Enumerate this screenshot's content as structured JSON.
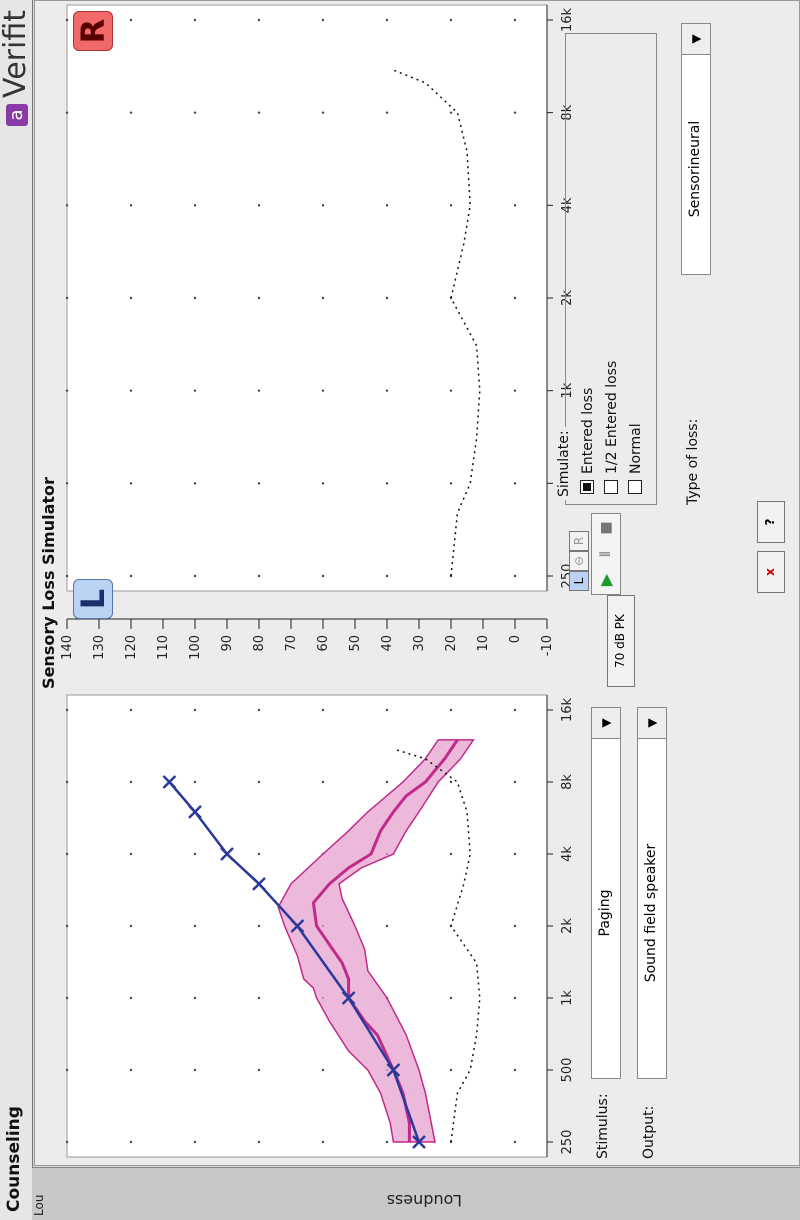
{
  "app": {
    "title": "Counseling",
    "brand": "Verifit",
    "brand_logo": "a"
  },
  "sidebar": {
    "vertical_label_short": "Lou",
    "vertical_label": "Loudness"
  },
  "simulator": {
    "title": "Sensory Loss Simulator"
  },
  "graph": {
    "left_badge": "L",
    "right_badge": "R",
    "x_ticks": [
      "250",
      "500",
      "1k",
      "2k",
      "4k",
      "8k",
      "16k"
    ],
    "y_ticks": [
      "140",
      "130",
      "120",
      "110",
      "100",
      "90",
      "80",
      "70",
      "60",
      "50",
      "40",
      "30",
      "20",
      "10",
      "0",
      "-10"
    ]
  },
  "chart_data": {
    "type": "line",
    "xlabel": "",
    "ylabel": "",
    "x_scale": "log",
    "xlim": [
      250,
      16000
    ],
    "ylim": [
      -10,
      140
    ],
    "categories": [
      "250",
      "500",
      "1k",
      "2k",
      "4k",
      "8k",
      "16k"
    ],
    "series": [
      {
        "name": "",
        "role": "hearing_loss_line",
        "color": "#2b3a9a",
        "x": [
          250,
          500,
          1000,
          2000,
          3000,
          4000,
          6000,
          8000
        ],
        "y": [
          30,
          38,
          52,
          68,
          80,
          90,
          100,
          108
        ]
      },
      {
        "name": "",
        "role": "speech_band_median",
        "color": "#c02a8a",
        "x": [
          250,
          300,
          400,
          500,
          700,
          800,
          1000,
          1200,
          1400,
          1600,
          2000,
          2500,
          3000,
          3500,
          4000,
          5000,
          6000,
          7000,
          8000,
          10000,
          12000
        ],
        "y": [
          33,
          33,
          35,
          38,
          43,
          47,
          52,
          52,
          54,
          57,
          62,
          63,
          58,
          52,
          45,
          42,
          38,
          34,
          28,
          22,
          18
        ]
      },
      {
        "name": "",
        "role": "speech_band_upper",
        "color": "#c02a8a",
        "x": [
          250,
          300,
          400,
          500,
          600,
          800,
          1000,
          1100,
          1200,
          1500,
          2000,
          2400,
          3000,
          4000,
          5000,
          6000,
          8000,
          10000,
          12000
        ],
        "y": [
          38,
          39,
          42,
          46,
          52,
          58,
          62,
          63,
          66,
          68,
          72,
          74,
          70,
          60,
          52,
          46,
          35,
          28,
          24
        ]
      },
      {
        "name": "",
        "role": "speech_band_lower",
        "color": "#c02a8a",
        "x": [
          250,
          400,
          500,
          700,
          1000,
          1300,
          1600,
          2000,
          2600,
          3000,
          3500,
          4000,
          5000,
          6000,
          8000,
          10000,
          12000
        ],
        "y": [
          25,
          28,
          30,
          34,
          40,
          46,
          47,
          50,
          54,
          55,
          48,
          38,
          34,
          30,
          24,
          17,
          13
        ]
      },
      {
        "name": "",
        "role": "threshold_curve",
        "color": "#111111",
        "style": "dotted",
        "x": [
          250,
          400,
          500,
          700,
          1000,
          1400,
          2000,
          3000,
          4000,
          6000,
          8000,
          10000,
          11000
        ],
        "y": [
          20,
          18,
          14,
          12,
          11,
          12,
          20,
          16,
          14,
          15,
          18,
          28,
          38
        ]
      }
    ],
    "right_series": [
      {
        "name": "",
        "role": "threshold_curve",
        "color": "#111111",
        "style": "dotted",
        "x": [
          250,
          400,
          500,
          700,
          1000,
          1400,
          2000,
          3000,
          4000,
          6000,
          8000,
          10000,
          11000
        ],
        "y": [
          20,
          18,
          14,
          12,
          11,
          12,
          20,
          16,
          14,
          15,
          18,
          28,
          38
        ]
      }
    ]
  },
  "controls": {
    "stimulus_label": "Stimulus:",
    "stimulus_value": "Paging",
    "output_label": "Output:",
    "output_value": "Sound field speaker",
    "level_button": "70 dB PK",
    "simulate": {
      "label": "Simulate:",
      "options": [
        {
          "label": "Entered loss",
          "selected": true
        },
        {
          "label": "1/2 Entered loss",
          "selected": false
        },
        {
          "label": "Normal",
          "selected": false
        }
      ]
    },
    "type_of_loss_label": "Type of loss:",
    "type_of_loss_value": "Sensorineural",
    "close_button": "x",
    "help_button": "?",
    "link_L": "L",
    "link_R": "R"
  },
  "colors": {
    "accent_blue": "#2b3a9a",
    "band_pink": "#c02a8a",
    "band_fill": "#e7a1cf",
    "right_badge_bg": "#f06a6a",
    "left_badge_bg": "#bcd2f2"
  }
}
